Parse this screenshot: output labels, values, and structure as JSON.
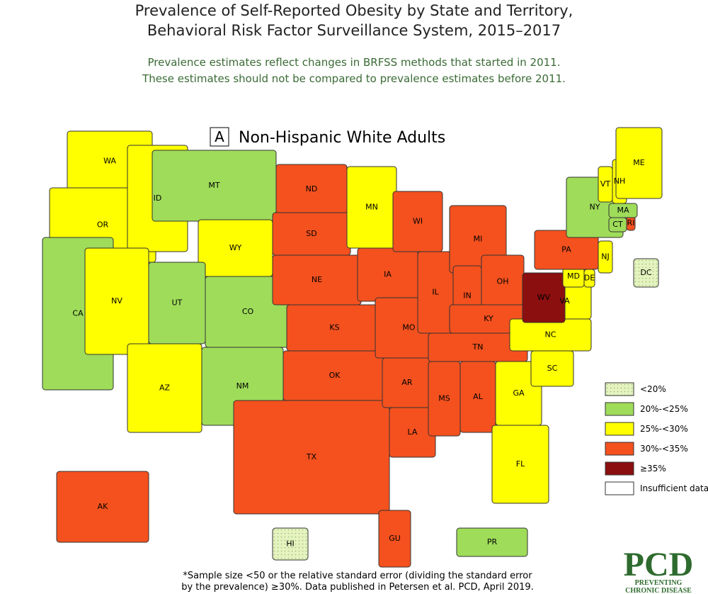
{
  "header": {
    "title_lines": [
      "Prevalence of Self-Reported Obesity by State and Territory,",
      "Behavioral Risk Factor Surveillance System, 2015–2017"
    ],
    "subtitle_lines": [
      "Prevalence estimates reflect changes in BRFSS methods that started in 2011.",
      "These estimates should not be compared to prevalence estimates before 2011."
    ]
  },
  "panel": {
    "letter": "A",
    "title": "Non-Hispanic White Adults"
  },
  "legend": [
    {
      "label": "<20%",
      "color": "#e4f3c0",
      "dotted": true
    },
    {
      "label": "20%-<25%",
      "color": "#9fdc5a"
    },
    {
      "label": "25%-<30%",
      "color": "#ffff00"
    },
    {
      "label": "30%-<35%",
      "color": "#f4511e"
    },
    {
      "label": "≥35%",
      "color": "#8b0f0f"
    },
    {
      "label": "Insufficient data",
      "color": "#ffffff"
    }
  ],
  "states": [
    {
      "label": "WA",
      "class": 2
    },
    {
      "label": "OR",
      "class": 2
    },
    {
      "label": "CA",
      "class": 1
    },
    {
      "label": "ID",
      "class": 2
    },
    {
      "label": "NV",
      "class": 2
    },
    {
      "label": "MT",
      "class": 1
    },
    {
      "label": "WY",
      "class": 2
    },
    {
      "label": "UT",
      "class": 1
    },
    {
      "label": "CO",
      "class": 1
    },
    {
      "label": "AZ",
      "class": 2
    },
    {
      "label": "NM",
      "class": 1
    },
    {
      "label": "ND",
      "class": 3
    },
    {
      "label": "SD",
      "class": 3
    },
    {
      "label": "NE",
      "class": 3
    },
    {
      "label": "KS",
      "class": 3
    },
    {
      "label": "OK",
      "class": 3
    },
    {
      "label": "TX",
      "class": 3
    },
    {
      "label": "MN",
      "class": 2
    },
    {
      "label": "IA",
      "class": 3
    },
    {
      "label": "MO",
      "class": 3
    },
    {
      "label": "AR",
      "class": 3
    },
    {
      "label": "LA",
      "class": 3
    },
    {
      "label": "WI",
      "class": 3
    },
    {
      "label": "IL",
      "class": 3
    },
    {
      "label": "MI",
      "class": 3
    },
    {
      "label": "IN",
      "class": 3
    },
    {
      "label": "OH",
      "class": 3
    },
    {
      "label": "KY",
      "class": 3
    },
    {
      "label": "TN",
      "class": 3
    },
    {
      "label": "MS",
      "class": 3
    },
    {
      "label": "AL",
      "class": 3
    },
    {
      "label": "GA",
      "class": 2
    },
    {
      "label": "FL",
      "class": 2
    },
    {
      "label": "SC",
      "class": 2
    },
    {
      "label": "NC",
      "class": 2
    },
    {
      "label": "VA",
      "class": 2
    },
    {
      "label": "WV",
      "class": 4
    },
    {
      "label": "MD",
      "class": 2
    },
    {
      "label": "DE",
      "class": 2
    },
    {
      "label": "NJ",
      "class": 2
    },
    {
      "label": "PA",
      "class": 3
    },
    {
      "label": "NY",
      "class": 1
    },
    {
      "label": "CT",
      "class": 1
    },
    {
      "label": "RI",
      "class": 3
    },
    {
      "label": "MA",
      "class": 1
    },
    {
      "label": "VT",
      "class": 2
    },
    {
      "label": "NH",
      "class": 2
    },
    {
      "label": "ME",
      "class": 2
    },
    {
      "label": "DC",
      "class": 0
    },
    {
      "label": "AK",
      "class": 3
    },
    {
      "label": "HI",
      "class": 0
    },
    {
      "label": "GU",
      "class": 3
    },
    {
      "label": "PR",
      "class": 1
    }
  ],
  "footnote_lines": [
    "*Sample size <50 or the relative standard error (dividing the standard error",
    "by the prevalence) ≥30%. Data published in Petersen et al. PCD, April 2019."
  ],
  "logo": {
    "mark": "PCD",
    "line1": "PREVENTING",
    "line2": "CHRONIC DISEASE"
  }
}
